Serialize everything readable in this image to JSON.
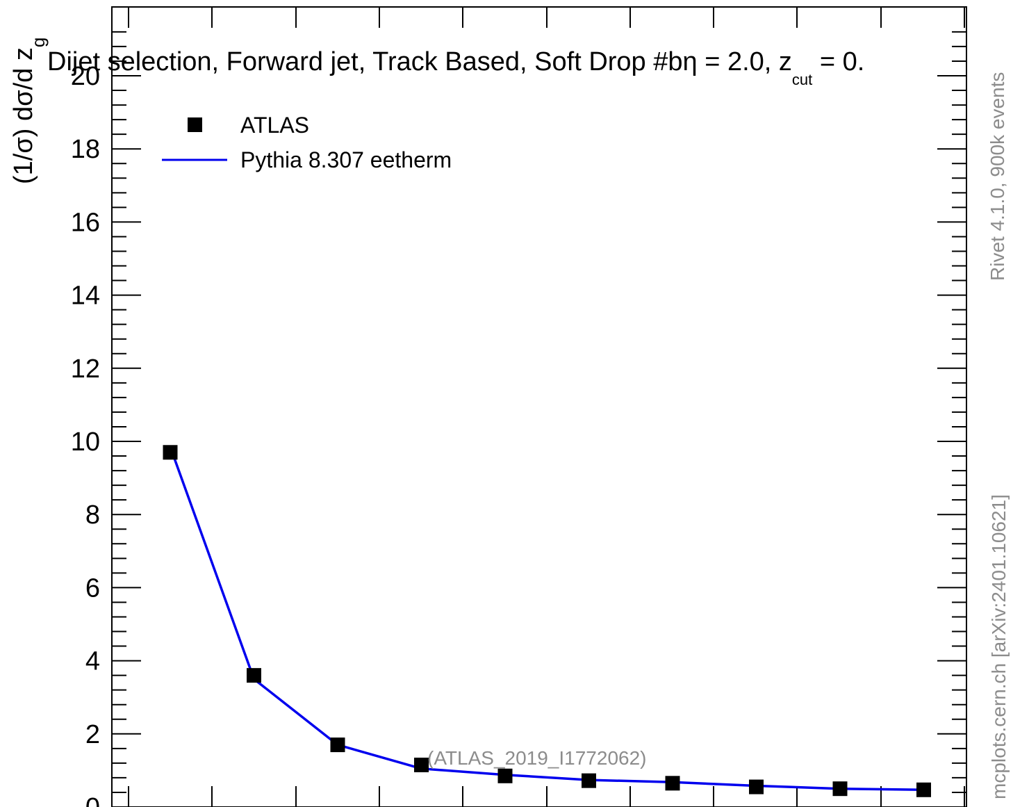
{
  "chart_data": {
    "type": "scatter",
    "title": "Dijet selection, Forward jet, Track Based, Soft Drop #b",
    "title_suffix": "η = 2.0, z",
    "title_sub": "cut",
    "title_tail": " = 0.",
    "ylabel": "(1/σ) dσ/d z",
    "ylabel_sub": "g",
    "ylim": [
      0,
      21.5
    ],
    "xlim": [
      -0.5,
      9.5
    ],
    "yticks": [
      "0",
      "2",
      "4",
      "6",
      "8",
      "10",
      "12",
      "14",
      "16",
      "18",
      "20"
    ],
    "xticks_count": 11,
    "grid": false,
    "legend_placement": "top-left",
    "series": [
      {
        "name": "ATLAS",
        "marker": "square",
        "color": "#000000",
        "x": [
          0,
          1,
          2,
          3,
          4,
          5,
          6,
          7,
          8,
          9
        ],
        "y": [
          9.7,
          3.6,
          1.7,
          1.15,
          0.85,
          0.72,
          0.65,
          0.55,
          0.5,
          0.47
        ]
      },
      {
        "name": "Pythia 8.307 eetherm",
        "marker": "line",
        "color": "#0000ee",
        "x": [
          0,
          1,
          2,
          3,
          4,
          5,
          6,
          7,
          8,
          9
        ],
        "y": [
          9.85,
          3.5,
          1.7,
          1.05,
          0.88,
          0.74,
          0.68,
          0.58,
          0.5,
          0.47
        ]
      }
    ]
  },
  "annotations": {
    "analysis_id": "(ATLAS_2019_I1772062)",
    "rivet_label": "Rivet 4.1.0,  900k events",
    "source_label": "mcplots.cern.ch [arXiv:2401.10621]"
  }
}
